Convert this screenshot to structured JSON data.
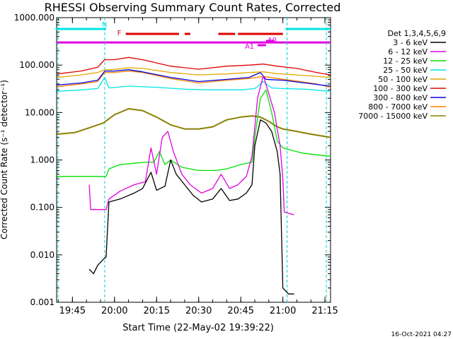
{
  "chart_data": {
    "type": "line",
    "title": "RHESSI Observing Summary Count Rates, Corrected",
    "xlabel": "Start Time (22-May-02 19:39:22)",
    "ylabel": "Corrected Count Rate (s⁻¹ detector⁻¹)",
    "yscale": "log",
    "ylim": [
      0.001,
      1000
    ],
    "xlim": [
      "19:39:22",
      "21:17:00"
    ],
    "x_ticks": [
      "19:45",
      "20:00",
      "20:15",
      "20:30",
      "20:45",
      "21:00",
      "21:15"
    ],
    "y_ticks": [
      "1000.000",
      "100.000",
      "10.000",
      "1.000",
      "0.100",
      "0.010",
      "0.001"
    ],
    "legend_title": "Det 1,3,4,5,6,9",
    "legend_position": "right",
    "timestamp": "16-Oct-2021 04:27",
    "flags": [
      {
        "label": "N",
        "color": "#00e5e5",
        "segments": [
          [
            "19:39",
            "19:57"
          ],
          [
            "21:01",
            "21:17"
          ]
        ]
      },
      {
        "label": "F",
        "color": "#e00000",
        "segments": [
          [
            "20:04",
            "20:23"
          ],
          [
            "20:25",
            "20:27"
          ],
          [
            "20:37",
            "20:43"
          ],
          [
            "20:44",
            "21:00"
          ]
        ]
      },
      {
        "label": "A1",
        "color": "#e000e0",
        "segments": [
          [
            "20:51",
            "20:54"
          ]
        ]
      },
      {
        "label": "A0",
        "color": "#e000e0",
        "segments": [
          [
            "20:54",
            "20:57"
          ]
        ]
      }
    ],
    "saa_line": {
      "color": "#e000e0",
      "value": 300
    },
    "vlines": {
      "color": "#00d0d0",
      "times": [
        "19:39:50",
        "19:56:30",
        "21:01:30",
        "21:15:30"
      ]
    },
    "series": [
      {
        "name": "3 - 6 keV",
        "color": "#000000",
        "points": [
          [
            "19:51:00",
            0.005
          ],
          [
            "19:52:30",
            0.004
          ],
          [
            "19:54:00",
            0.006
          ],
          [
            "19:56:00",
            0.008
          ],
          [
            "19:57:00",
            0.009
          ],
          [
            "19:58:00",
            0.13
          ],
          [
            "20:02",
            0.15
          ],
          [
            "20:07",
            0.2
          ],
          [
            "20:10",
            0.25
          ],
          [
            "20:13",
            0.55
          ],
          [
            "20:15",
            0.23
          ],
          [
            "20:18",
            0.28
          ],
          [
            "20:20",
            1.0
          ],
          [
            "20:22",
            0.5
          ],
          [
            "20:25",
            0.3
          ],
          [
            "20:28",
            0.18
          ],
          [
            "20:31",
            0.13
          ],
          [
            "20:35",
            0.15
          ],
          [
            "20:38",
            0.25
          ],
          [
            "20:41",
            0.14
          ],
          [
            "20:44",
            0.15
          ],
          [
            "20:47",
            0.2
          ],
          [
            "20:49",
            0.3
          ],
          [
            "20:50",
            2.0
          ],
          [
            "20:52",
            7.0
          ],
          [
            "20:54",
            6.0
          ],
          [
            "20:56",
            4.0
          ],
          [
            "20:58",
            1.5
          ],
          [
            "20:59",
            0.5
          ],
          [
            "21:00",
            0.002
          ],
          [
            "21:02",
            0.0015
          ],
          [
            "21:04",
            0.0015
          ]
        ]
      },
      {
        "name": "6 - 12 keV",
        "color": "#e000e0",
        "points": [
          [
            "19:51:00",
            0.3
          ],
          [
            "19:51:30",
            0.09
          ],
          [
            "19:56:00",
            0.09
          ],
          [
            "19:57:00",
            0.09
          ],
          [
            "19:58:00",
            0.15
          ],
          [
            "20:02",
            0.22
          ],
          [
            "20:07",
            0.3
          ],
          [
            "20:11",
            0.35
          ],
          [
            "20:13",
            1.8
          ],
          [
            "20:15",
            0.5
          ],
          [
            "20:17",
            3.0
          ],
          [
            "20:19",
            4.0
          ],
          [
            "20:21",
            1.5
          ],
          [
            "20:24",
            0.5
          ],
          [
            "20:27",
            0.3
          ],
          [
            "20:31",
            0.2
          ],
          [
            "20:35",
            0.25
          ],
          [
            "20:38",
            0.5
          ],
          [
            "20:41",
            0.25
          ],
          [
            "20:44",
            0.3
          ],
          [
            "20:47",
            0.45
          ],
          [
            "20:49",
            1.2
          ],
          [
            "20:51",
            20
          ],
          [
            "20:53",
            60
          ],
          [
            "20:55",
            25
          ],
          [
            "20:57",
            10
          ],
          [
            "20:59",
            2.0
          ],
          [
            "21:00",
            0.4
          ],
          [
            "21:00:30",
            0.08
          ],
          [
            "21:04",
            0.07
          ]
        ]
      },
      {
        "name": "12 - 25 keV",
        "color": "#00e000",
        "points": [
          [
            "19:39:30",
            0.45
          ],
          [
            "19:56:00",
            0.45
          ],
          [
            "19:57:00",
            0.45
          ],
          [
            "19:58:00",
            0.65
          ],
          [
            "20:02",
            0.8
          ],
          [
            "20:07",
            0.85
          ],
          [
            "20:11",
            0.9
          ],
          [
            "20:14",
            0.9
          ],
          [
            "20:16",
            1.5
          ],
          [
            "20:18",
            0.8
          ],
          [
            "20:20",
            1.0
          ],
          [
            "20:24",
            0.7
          ],
          [
            "20:30",
            0.6
          ],
          [
            "20:36",
            0.6
          ],
          [
            "20:40",
            0.65
          ],
          [
            "20:45",
            0.8
          ],
          [
            "20:49",
            0.9
          ],
          [
            "20:50",
            3.0
          ],
          [
            "20:52",
            20
          ],
          [
            "20:54",
            30
          ],
          [
            "20:56",
            10
          ],
          [
            "20:58",
            2.5
          ],
          [
            "21:00",
            1.8
          ],
          [
            "21:03",
            1.6
          ],
          [
            "21:07",
            1.4
          ],
          [
            "21:11",
            1.3
          ],
          [
            "21:17",
            1.2
          ]
        ]
      },
      {
        "name": "25 - 50 keV",
        "color": "#00e5e5",
        "points": [
          [
            "19:39:30",
            28
          ],
          [
            "19:48",
            30
          ],
          [
            "19:54",
            32
          ],
          [
            "19:56:30",
            55
          ],
          [
            "19:58",
            33
          ],
          [
            "20:05",
            36
          ],
          [
            "20:15",
            34
          ],
          [
            "20:25",
            31
          ],
          [
            "20:35",
            30
          ],
          [
            "20:45",
            30
          ],
          [
            "20:50",
            32
          ],
          [
            "20:53",
            45
          ],
          [
            "20:56",
            33
          ],
          [
            "21:00",
            32
          ],
          [
            "21:08",
            31
          ],
          [
            "21:17",
            28
          ]
        ]
      },
      {
        "name": "50 - 100 keV",
        "color": "#e0a800",
        "points": [
          [
            "19:39:30",
            55
          ],
          [
            "19:48",
            62
          ],
          [
            "19:54",
            70
          ],
          [
            "19:56:30",
            80
          ],
          [
            "19:59",
            80
          ],
          [
            "20:05",
            88
          ],
          [
            "20:10",
            85
          ],
          [
            "20:20",
            70
          ],
          [
            "20:30",
            62
          ],
          [
            "20:40",
            65
          ],
          [
            "20:48",
            70
          ],
          [
            "20:53",
            72
          ],
          [
            "20:58",
            66
          ],
          [
            "21:05",
            62
          ],
          [
            "21:12",
            58
          ],
          [
            "21:17",
            55
          ]
        ]
      },
      {
        "name": "100 - 300 keV",
        "color": "#e00000",
        "points": [
          [
            "19:39:30",
            65
          ],
          [
            "19:48",
            75
          ],
          [
            "19:54",
            90
          ],
          [
            "19:56:30",
            130
          ],
          [
            "20:00",
            130
          ],
          [
            "20:05",
            145
          ],
          [
            "20:10",
            130
          ],
          [
            "20:20",
            95
          ],
          [
            "20:30",
            82
          ],
          [
            "20:40",
            95
          ],
          [
            "20:48",
            100
          ],
          [
            "20:53",
            105
          ],
          [
            "20:58",
            95
          ],
          [
            "21:05",
            85
          ],
          [
            "21:12",
            70
          ],
          [
            "21:17",
            62
          ]
        ]
      },
      {
        "name": "300 - 800 keV",
        "color": "#0000e0",
        "points": [
          [
            "19:39:30",
            38
          ],
          [
            "19:48",
            42
          ],
          [
            "19:54",
            48
          ],
          [
            "19:56:30",
            75
          ],
          [
            "20:00",
            75
          ],
          [
            "20:05",
            80
          ],
          [
            "20:10",
            72
          ],
          [
            "20:20",
            55
          ],
          [
            "20:30",
            45
          ],
          [
            "20:40",
            50
          ],
          [
            "20:48",
            55
          ],
          [
            "20:52",
            70
          ],
          [
            "20:54",
            50
          ],
          [
            "21:00",
            48
          ],
          [
            "21:08",
            42
          ],
          [
            "21:17",
            36
          ]
        ]
      },
      {
        "name": "800 - 7000 keV",
        "color": "#ff7f00",
        "points": [
          [
            "19:39:30",
            35
          ],
          [
            "19:48",
            40
          ],
          [
            "19:54",
            45
          ],
          [
            "19:56:30",
            70
          ],
          [
            "20:00",
            70
          ],
          [
            "20:05",
            75
          ],
          [
            "20:10",
            70
          ],
          [
            "20:20",
            52
          ],
          [
            "20:30",
            42
          ],
          [
            "20:40",
            48
          ],
          [
            "20:48",
            52
          ],
          [
            "20:53",
            58
          ],
          [
            "20:58",
            52
          ],
          [
            "21:05",
            46
          ],
          [
            "21:12",
            40
          ],
          [
            "21:17",
            34
          ]
        ]
      },
      {
        "name": "7000 - 15000 keV",
        "color": "#8b8000",
        "points": [
          [
            "19:39:30",
            3.5
          ],
          [
            "19:46",
            3.8
          ],
          [
            "19:52",
            5.0
          ],
          [
            "19:56",
            6.0
          ],
          [
            "20:00",
            9.0
          ],
          [
            "20:05",
            12
          ],
          [
            "20:10",
            11
          ],
          [
            "20:15",
            8.0
          ],
          [
            "20:20",
            5.5
          ],
          [
            "20:25",
            4.5
          ],
          [
            "20:30",
            4.5
          ],
          [
            "20:35",
            5.0
          ],
          [
            "20:40",
            7.0
          ],
          [
            "20:45",
            8.0
          ],
          [
            "20:49",
            8.5
          ],
          [
            "20:52",
            8.0
          ],
          [
            "20:55",
            6.5
          ],
          [
            "20:58",
            5.0
          ],
          [
            "21:00",
            4.5
          ],
          [
            "21:05",
            4.0
          ],
          [
            "21:10",
            3.5
          ],
          [
            "21:17",
            3.0
          ]
        ]
      }
    ]
  }
}
